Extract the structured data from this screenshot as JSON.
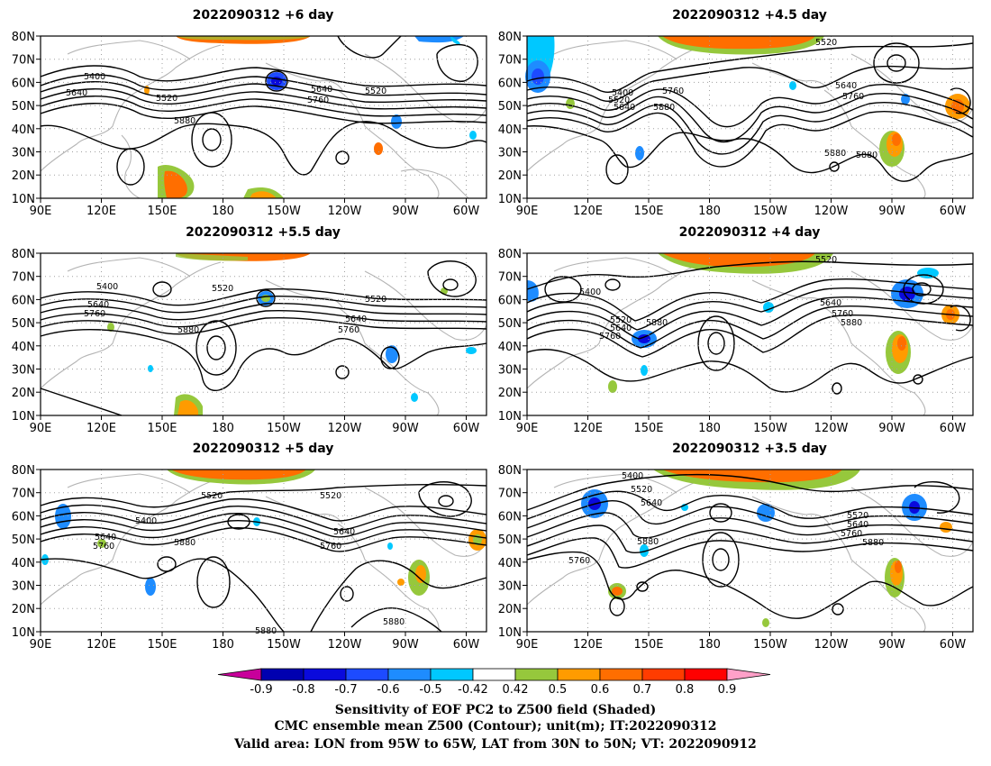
{
  "panels": [
    {
      "title": "2022090312 +6 day",
      "contour_labels": [
        "5400",
        "5640",
        "5520",
        "5640",
        "5760",
        "5520",
        "5880"
      ]
    },
    {
      "title": "2022090312 +4.5 day",
      "contour_labels": [
        "5520",
        "5400",
        "5520",
        "5640",
        "5760",
        "5880",
        "5640",
        "5760",
        "5880",
        "5880"
      ]
    },
    {
      "title": "2022090312 +5.5 day",
      "contour_labels": [
        "5400",
        "5520",
        "5640",
        "5760",
        "5520",
        "5880",
        "5640",
        "5760"
      ]
    },
    {
      "title": "2022090312 +4 day",
      "contour_labels": [
        "5520",
        "5400",
        "5520",
        "5640",
        "5760",
        "5880",
        "5640",
        "5760",
        "5880"
      ]
    },
    {
      "title": "2022090312 +5 day",
      "contour_labels": [
        "5400",
        "5520",
        "5520",
        "5640",
        "5760",
        "5880",
        "5640",
        "5760",
        "5880",
        "5880"
      ]
    },
    {
      "title": "2022090312 +3.5 day",
      "contour_labels": [
        "5400",
        "5520",
        "5640",
        "5880",
        "5760",
        "5520",
        "5640",
        "5760",
        "5880"
      ]
    }
  ],
  "lat_labels": [
    "80N",
    "70N",
    "60N",
    "50N",
    "40N",
    "30N",
    "20N",
    "10N"
  ],
  "lon_labels": [
    "90E",
    "120E",
    "150E",
    "180",
    "150W",
    "120W",
    "90W",
    "60W"
  ],
  "colorbar": {
    "ticks": [
      "-0.9",
      "-0.8",
      "-0.7",
      "-0.6",
      "-0.5",
      "-0.42",
      "0.42",
      "0.5",
      "0.6",
      "0.7",
      "0.8",
      "0.9"
    ],
    "colors": [
      "#c8009b",
      "#0000b0",
      "#0a0adc",
      "#1d4bff",
      "#1e8cff",
      "#00c8ff",
      "#ffffff",
      "#96c83c",
      "#ff9b00",
      "#ff6e00",
      "#ff3c00",
      "#ff0000",
      "#ffa0c8"
    ]
  },
  "caption": [
    "Sensitivity of EOF PC2 to Z500 field (Shaded)",
    "CMC ensemble mean Z500 (Contour); unit(m); IT:2022090312",
    "Valid area: LON from 95W to 65W, LAT from 30N to 50N; VT: 2022090912"
  ]
}
